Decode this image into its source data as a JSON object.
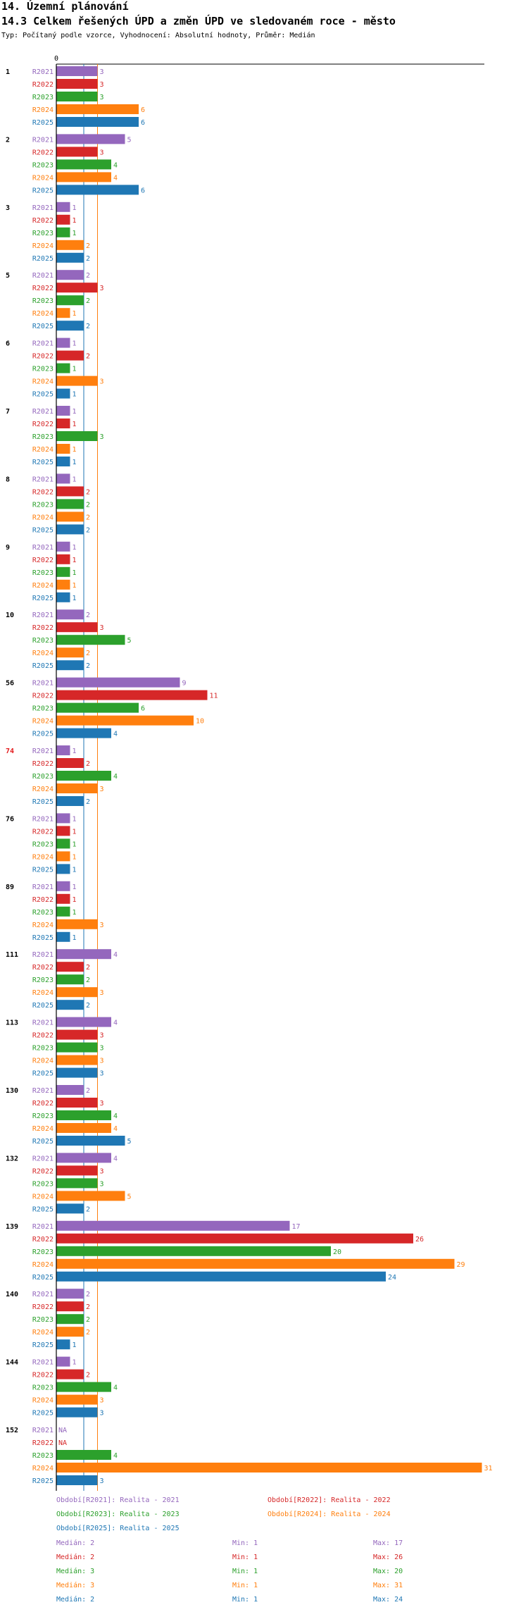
{
  "header": {
    "section": "14. Územní plánování",
    "title": "14.3 Celkem řešených ÚPD a změn ÚPD ve sledovaném roce - město",
    "subtitle": "Typ: Počítaný podle vzorce, Vyhodnocení: Absolutní hodnoty, Průměr: Medián"
  },
  "colors": {
    "R2021": "#9467bd",
    "R2022": "#d62728",
    "R2023": "#2ca02c",
    "R2024": "#ff7f0e",
    "R2025": "#1f77b4",
    "highlight_group": "#e41a1c"
  },
  "chart_data": {
    "type": "bar",
    "orientation": "horizontal",
    "axis_zero_label": "0",
    "xlim": [
      0,
      31
    ],
    "series_names": [
      "R2021",
      "R2022",
      "R2023",
      "R2024",
      "R2025"
    ],
    "na_label": "NA",
    "highlight_group": "74",
    "median_lines": [
      {
        "series": "R2025",
        "value": 2
      },
      {
        "series": "R2024",
        "value": 3
      }
    ],
    "groups": [
      {
        "id": "1",
        "values": [
          3,
          3,
          3,
          6,
          6
        ]
      },
      {
        "id": "2",
        "values": [
          5,
          3,
          4,
          4,
          6
        ]
      },
      {
        "id": "3",
        "values": [
          1,
          1,
          1,
          2,
          2
        ]
      },
      {
        "id": "5",
        "values": [
          2,
          3,
          2,
          1,
          2
        ]
      },
      {
        "id": "6",
        "values": [
          1,
          2,
          1,
          3,
          1
        ]
      },
      {
        "id": "7",
        "values": [
          1,
          1,
          3,
          1,
          1
        ]
      },
      {
        "id": "8",
        "values": [
          1,
          2,
          2,
          2,
          2
        ]
      },
      {
        "id": "9",
        "values": [
          1,
          1,
          1,
          1,
          1
        ]
      },
      {
        "id": "10",
        "values": [
          2,
          3,
          5,
          2,
          2
        ]
      },
      {
        "id": "56",
        "values": [
          9,
          11,
          6,
          10,
          4
        ]
      },
      {
        "id": "74",
        "values": [
          1,
          2,
          4,
          3,
          2
        ]
      },
      {
        "id": "76",
        "values": [
          1,
          1,
          1,
          1,
          1
        ]
      },
      {
        "id": "89",
        "values": [
          1,
          1,
          1,
          3,
          1
        ]
      },
      {
        "id": "111",
        "values": [
          4,
          2,
          2,
          3,
          2
        ]
      },
      {
        "id": "113",
        "values": [
          4,
          3,
          3,
          3,
          3
        ]
      },
      {
        "id": "130",
        "values": [
          2,
          3,
          4,
          4,
          5
        ]
      },
      {
        "id": "132",
        "values": [
          4,
          3,
          3,
          5,
          2
        ]
      },
      {
        "id": "139",
        "values": [
          17,
          26,
          20,
          29,
          24
        ]
      },
      {
        "id": "140",
        "values": [
          2,
          2,
          2,
          2,
          1
        ]
      },
      {
        "id": "144",
        "values": [
          1,
          2,
          4,
          3,
          3
        ]
      },
      {
        "id": "152",
        "values": [
          null,
          null,
          4,
          31,
          3
        ]
      }
    ]
  },
  "legend": [
    {
      "text": "Období[R2021]: Realita - 2021",
      "series": "R2021"
    },
    {
      "text": "Období[R2022]: Realita - 2022",
      "series": "R2022"
    },
    {
      "text": "Období[R2023]: Realita - 2023",
      "series": "R2023"
    },
    {
      "text": "Období[R2024]: Realita - 2024",
      "series": "R2024"
    },
    {
      "text": "Období[R2025]: Realita - 2025",
      "series": "R2025"
    }
  ],
  "stats": [
    {
      "series": "R2021",
      "median": "Medián: 2",
      "min": "Min: 1",
      "max": "Max: 17"
    },
    {
      "series": "R2022",
      "median": "Medián: 2",
      "min": "Min: 1",
      "max": "Max: 26"
    },
    {
      "series": "R2023",
      "median": "Medián: 3",
      "min": "Min: 1",
      "max": "Max: 20"
    },
    {
      "series": "R2024",
      "median": "Medián: 3",
      "min": "Min: 1",
      "max": "Max: 31"
    },
    {
      "series": "R2025",
      "median": "Medián: 2",
      "min": "Min: 1",
      "max": "Max: 24"
    }
  ]
}
